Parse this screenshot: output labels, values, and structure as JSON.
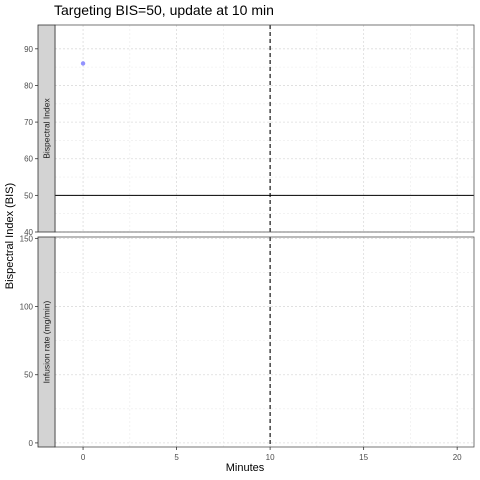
{
  "chart_data": {
    "type": "scatter",
    "title": "Targeting BIS=50, update at 10 min",
    "xlabel": "Minutes",
    "ylabel": "Bispectral Index (BIS)",
    "xlim": [
      -1.5,
      20.9
    ],
    "x_ticks": [
      0,
      5,
      10,
      15,
      20
    ],
    "vline_x": 10,
    "grid": true,
    "facets": [
      {
        "label": "Bispectral Index",
        "ylim": [
          40,
          96.5
        ],
        "y_ticks": [
          40,
          50,
          60,
          70,
          80,
          90
        ],
        "hline_y": 50,
        "points": [
          {
            "x": 0,
            "y": 86
          }
        ],
        "point_color": "#8080ff"
      },
      {
        "label": "Infusion rate (mg/min)",
        "ylim": [
          -3,
          151
        ],
        "y_ticks": [
          0,
          50,
          100,
          150
        ],
        "points": []
      }
    ]
  }
}
